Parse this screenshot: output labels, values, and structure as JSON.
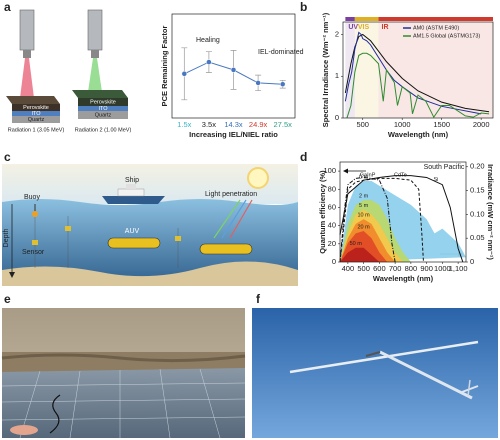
{
  "panel_labels": [
    "a",
    "b",
    "c",
    "d",
    "e",
    "f"
  ],
  "panel_a": {
    "devices": [
      {
        "caption": "Radiation 1 (3.05 MeV)",
        "layers": [
          "Perovskite",
          "ITO",
          "Quartz"
        ]
      },
      {
        "caption": "Radiation 2 (1.00 MeV)",
        "layers": [
          "Perovskite",
          "ITO",
          "Quartz"
        ]
      }
    ]
  },
  "panel_c": {
    "ship": "Ship",
    "buoy": "Buoy",
    "auv": "AUV",
    "sensor": "Sensor",
    "light": "Light penetration",
    "depth": "Depth"
  },
  "chart_data": [
    {
      "type": "line",
      "x_label": "Increasing IEL/NIEL ratio",
      "y_label": "PCE Remaining Factor",
      "categories": [
        "1.5x",
        "3.5x",
        "14.3x",
        "24.9x",
        "27.5x"
      ],
      "category_colors": [
        "#3fb3c4",
        "#222222",
        "#3a6fb5",
        "#d0392c",
        "#2f9e88"
      ],
      "ylim": [
        0.4,
        1.2
      ],
      "series": [
        {
          "color": "#4a78c0",
          "markers": true,
          "values": [
            0.74,
            0.83,
            0.77,
            0.67,
            0.66
          ],
          "errors": [
            0.2,
            0.08,
            0.15,
            0.06,
            0.03
          ]
        }
      ],
      "annotations": [
        "Healing",
        "IEL-dominated"
      ]
    },
    {
      "type": "line",
      "x_label": "Wavelength (nm)",
      "y_label": "Spectral Irradiance (Wm⁻² nm⁻¹)",
      "xlim": [
        250,
        2150
      ],
      "xticks": [
        500,
        1000,
        1500,
        2000
      ],
      "ylim": [
        0,
        2.3
      ],
      "yticks": [
        0,
        1,
        2
      ],
      "legend": "upper right",
      "bands": [
        {
          "label": "UV",
          "range": [
            280,
            400
          ],
          "color": "#7b3fa0"
        },
        {
          "label": "VIS",
          "range": [
            400,
            700
          ],
          "color": "#e0b020"
        },
        {
          "label": "IR",
          "range": [
            700,
            2150
          ],
          "color": "#d0392c"
        }
      ],
      "series": [
        {
          "color": "#111111",
          "x": [
            280,
            350,
            400,
            450,
            500,
            600,
            700,
            800,
            1000,
            1200,
            1500,
            1800,
            2100
          ],
          "values": [
            0.6,
            1.3,
            1.7,
            1.95,
            2.0,
            1.85,
            1.6,
            1.35,
            0.95,
            0.65,
            0.38,
            0.23,
            0.15
          ]
        },
        {
          "name": "AM0 (ASTM E490)",
          "color": "#1f2d9c",
          "x": [
            280,
            320,
            360,
            400,
            420,
            450,
            480,
            500,
            550,
            600,
            700,
            800,
            900,
            1000,
            1200,
            1500,
            2000
          ],
          "values": [
            0.4,
            0.8,
            1.1,
            1.65,
            1.8,
            2.05,
            2.0,
            1.9,
            1.85,
            1.75,
            1.45,
            1.15,
            0.9,
            0.75,
            0.48,
            0.28,
            0.1
          ]
        },
        {
          "name": "AM1.5 Global (ASTMG173)",
          "color": "#2e8b2e",
          "x": [
            300,
            350,
            400,
            450,
            500,
            550,
            600,
            700,
            760,
            800,
            900,
            940,
            1000,
            1100,
            1130,
            1200,
            1300,
            1400,
            1500,
            1600,
            1800,
            1900,
            2000,
            2100
          ],
          "values": [
            0,
            0.3,
            1.1,
            1.5,
            1.55,
            1.55,
            1.5,
            1.3,
            0.4,
            1.15,
            0.85,
            0.3,
            0.75,
            0.6,
            0.1,
            0.55,
            0.4,
            0.02,
            0.3,
            0.3,
            0.05,
            0.02,
            0.12,
            0.1
          ]
        }
      ]
    },
    {
      "type": "line",
      "x_label": "Wavelength (nm)",
      "y_label": "Quantum efficiency (%)",
      "y2_label": "Irradiance (mW cm⁻² nm⁻¹)",
      "xlim": [
        350,
        1150
      ],
      "xticks": [
        400,
        500,
        600,
        700,
        800,
        900,
        1000,
        {
          "value": 1100,
          "label": "1,100"
        }
      ],
      "ylim": [
        0,
        110
      ],
      "yticks": [
        0,
        20,
        40,
        60,
        80,
        100
      ],
      "y2lim": [
        0,
        0.21
      ],
      "y2ticks": [
        0,
        0.05,
        {
          "value": 0.1,
          "label": "0.10"
        },
        0.15,
        {
          "value": 0.2,
          "label": "0.20"
        }
      ],
      "annotations": [
        "South Pacific"
      ],
      "series": [
        {
          "name": "0 m",
          "axis": "y2",
          "fill": true,
          "color": "#8fd0ec",
          "x": [
            350,
            400,
            450,
            500,
            550,
            600,
            700,
            800,
            900,
            950,
            1000,
            1100,
            1150
          ],
          "values": [
            0,
            0.12,
            0.16,
            0.17,
            0.17,
            0.16,
            0.14,
            0.12,
            0.09,
            0.06,
            0.07,
            0.04,
            0.01
          ]
        },
        {
          "name": "2 m",
          "axis": "y2",
          "fill": true,
          "color": "#b8d86b",
          "x": [
            350,
            400,
            450,
            500,
            550,
            600,
            650,
            700,
            750,
            800
          ],
          "values": [
            0,
            0.08,
            0.12,
            0.13,
            0.13,
            0.12,
            0.09,
            0.05,
            0.02,
            0
          ]
        },
        {
          "name": "5 m",
          "axis": "y2",
          "fill": true,
          "color": "#f2c84b",
          "x": [
            350,
            400,
            450,
            500,
            550,
            600,
            650,
            700,
            750
          ],
          "values": [
            0,
            0.06,
            0.1,
            0.11,
            0.1,
            0.08,
            0.05,
            0.02,
            0
          ]
        },
        {
          "name": "10 m",
          "axis": "y2",
          "fill": true,
          "color": "#f08a2a",
          "x": [
            350,
            400,
            450,
            500,
            550,
            600,
            650,
            700
          ],
          "values": [
            0,
            0.05,
            0.08,
            0.09,
            0.08,
            0.05,
            0.02,
            0
          ]
        },
        {
          "name": "20 m",
          "axis": "y2",
          "fill": true,
          "color": "#e04b25",
          "x": [
            350,
            400,
            450,
            500,
            550,
            600,
            650
          ],
          "values": [
            0,
            0.04,
            0.06,
            0.065,
            0.05,
            0.02,
            0
          ]
        },
        {
          "name": "50 m",
          "axis": "y2",
          "fill": true,
          "color": "#b8201a",
          "x": [
            350,
            400,
            450,
            500,
            550,
            600
          ],
          "values": [
            0,
            0.02,
            0.03,
            0.03,
            0.015,
            0
          ]
        },
        {
          "name": "GaInP",
          "color": "#111111",
          "style": "dashdot",
          "x": [
            350,
            380,
            400,
            450,
            500,
            550,
            600,
            650,
            680,
            700
          ],
          "values": [
            0,
            60,
            85,
            92,
            93,
            92,
            90,
            70,
            20,
            0
          ]
        },
        {
          "name": "CdTe",
          "color": "#111111",
          "style": "dash",
          "x": [
            350,
            400,
            450,
            500,
            600,
            700,
            800,
            850,
            870,
            880
          ],
          "values": [
            0,
            80,
            88,
            90,
            92,
            92,
            90,
            80,
            30,
            0
          ]
        },
        {
          "name": "Si",
          "color": "#111111",
          "style": "solid",
          "x": [
            350,
            400,
            500,
            600,
            700,
            800,
            900,
            1000,
            1050,
            1100,
            1130
          ],
          "values": [
            30,
            75,
            90,
            93,
            95,
            95,
            93,
            85,
            60,
            15,
            0
          ]
        }
      ]
    }
  ]
}
